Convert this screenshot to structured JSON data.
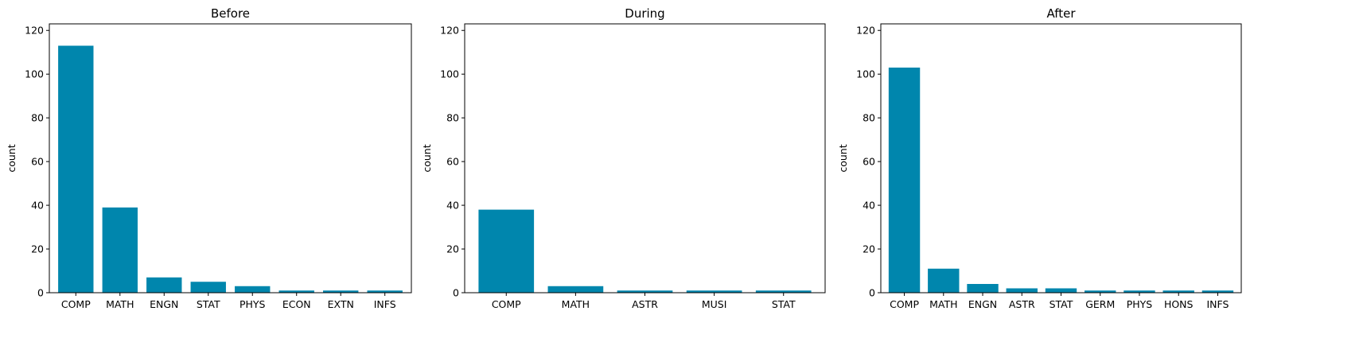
{
  "chart_data": [
    {
      "type": "bar",
      "title": "Before",
      "xlabel": "",
      "ylabel": "count",
      "ylim": [
        0,
        123
      ],
      "yticks": [
        0,
        20,
        40,
        60,
        80,
        100,
        120
      ],
      "categories": [
        "COMP",
        "MATH",
        "ENGN",
        "STAT",
        "PHYS",
        "ECON",
        "EXTN",
        "INFS"
      ],
      "values": [
        113,
        39,
        7,
        5,
        3,
        1,
        1,
        1
      ],
      "color": "#0086ad",
      "grid": false
    },
    {
      "type": "bar",
      "title": "During",
      "xlabel": "",
      "ylabel": "count",
      "ylim": [
        0,
        123
      ],
      "yticks": [
        0,
        20,
        40,
        60,
        80,
        100,
        120
      ],
      "categories": [
        "COMP",
        "MATH",
        "ASTR",
        "MUSI",
        "STAT"
      ],
      "values": [
        38,
        3,
        1,
        1,
        1
      ],
      "color": "#0086ad",
      "grid": false
    },
    {
      "type": "bar",
      "title": "After",
      "xlabel": "",
      "ylabel": "count",
      "ylim": [
        0,
        123
      ],
      "yticks": [
        0,
        20,
        40,
        60,
        80,
        100,
        120
      ],
      "categories": [
        "COMP",
        "MATH",
        "ENGN",
        "ASTR",
        "STAT",
        "GERM",
        "PHYS",
        "HONS",
        "INFS"
      ],
      "values": [
        103,
        11,
        4,
        2,
        2,
        1,
        1,
        1,
        1
      ],
      "color": "#0086ad",
      "grid": false
    }
  ]
}
